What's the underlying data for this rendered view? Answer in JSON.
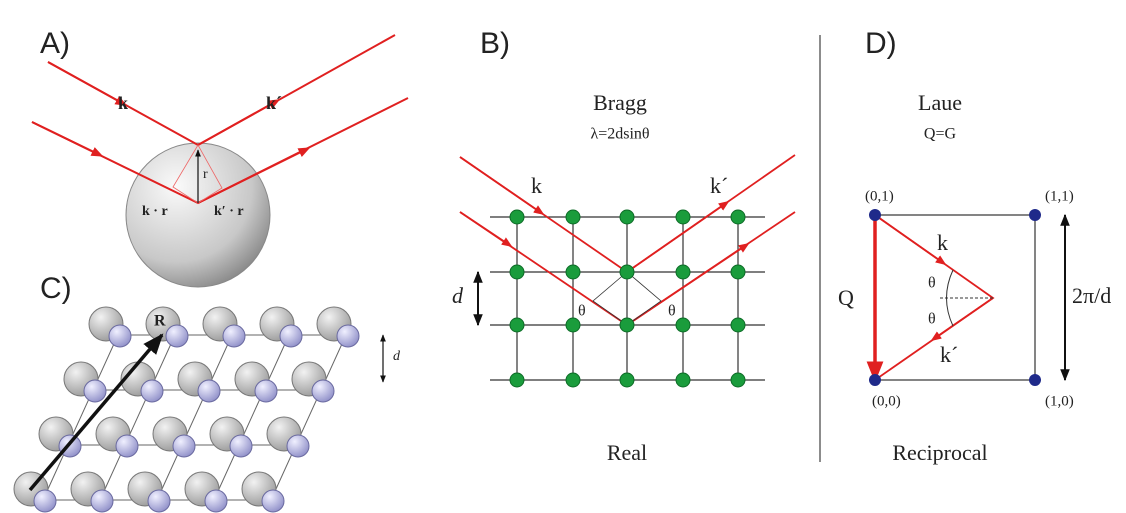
{
  "panel_a": {
    "label": "A)",
    "k_in": "k",
    "k_out": "k´",
    "r": "r",
    "k_dot_r": "k · r",
    "kp_dot_r": "k′ · r"
  },
  "panel_b": {
    "label": "B)",
    "title": "Bragg",
    "law": "λ=2dsinθ",
    "k_in": "k",
    "k_out": "k´",
    "d": "d",
    "theta_left": "θ",
    "theta_right": "θ",
    "caption": "Real"
  },
  "panel_c": {
    "label": "C)",
    "R": "R",
    "d": "d"
  },
  "panel_d": {
    "label": "D)",
    "title": "Laue",
    "law": "Q=G",
    "p01": "(0,1)",
    "p11": "(1,1)",
    "p00": "(0,0)",
    "p10": "(1,0)",
    "k_in": "k",
    "k_out": "k´",
    "theta_top": "θ",
    "theta_bottom": "θ",
    "Q": "Q",
    "spacing": "2π/d",
    "caption": "Reciprocal"
  }
}
